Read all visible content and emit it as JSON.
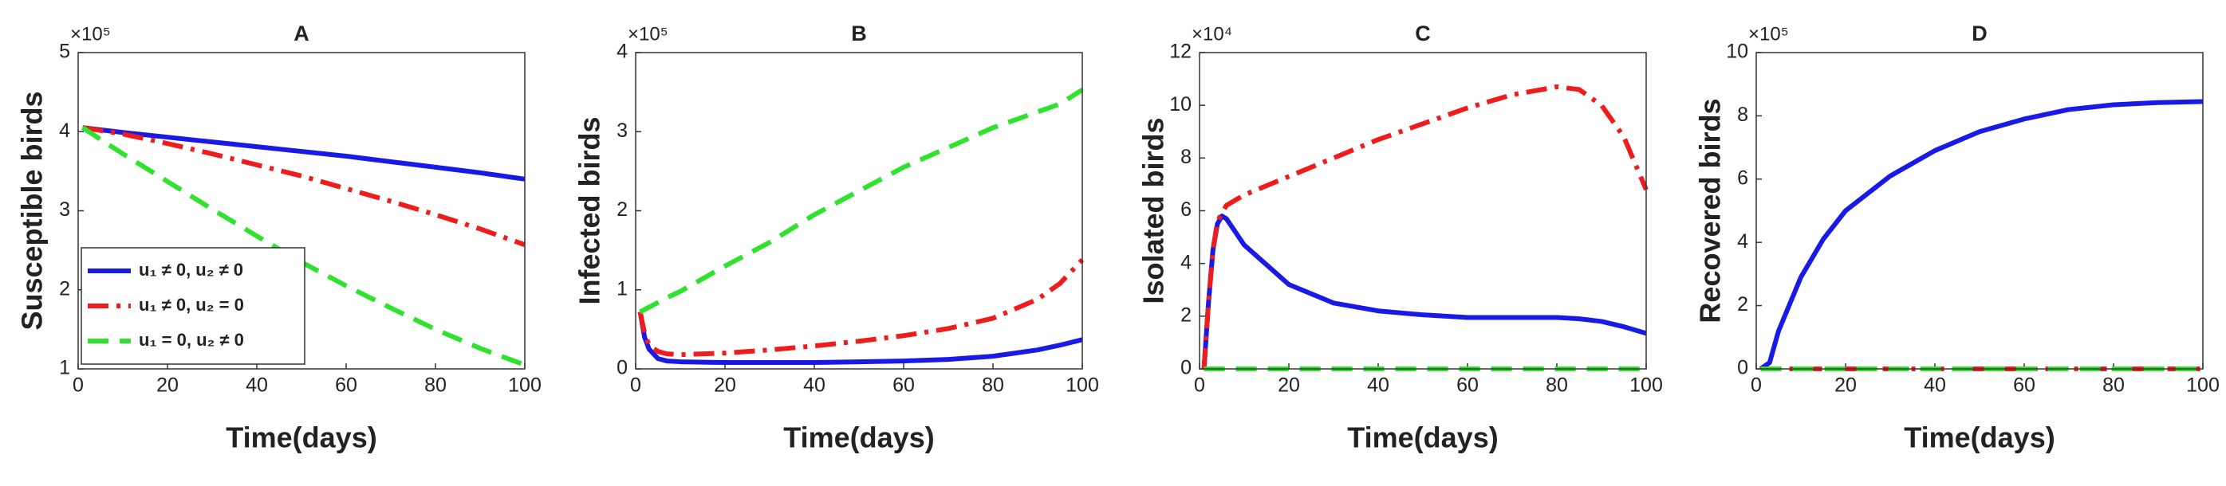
{
  "chart_data": [
    {
      "type": "line",
      "title": "A",
      "xlabel": "Time(days)",
      "ylabel": "Susceptible birds",
      "y_multiplier": "×10⁵",
      "x": [
        1,
        10,
        20,
        30,
        40,
        50,
        60,
        70,
        80,
        90,
        100
      ],
      "series": [
        {
          "name": "u₁ ≠ 0, u₂ ≠ 0",
          "color": "#1a1ae6",
          "dash": "solid",
          "values": [
            4.05,
            3.99,
            3.93,
            3.87,
            3.81,
            3.75,
            3.69,
            3.62,
            3.55,
            3.48,
            3.4
          ]
        },
        {
          "name": "u₁ ≠ 0, u₂ = 0",
          "color": "#ee1c1c",
          "dash": "dashdot",
          "values": [
            4.05,
            3.97,
            3.85,
            3.72,
            3.58,
            3.44,
            3.28,
            3.12,
            2.95,
            2.77,
            2.57
          ]
        },
        {
          "name": "u₁ = 0, u₂ ≠ 0",
          "color": "#2ee22e",
          "dash": "dashed",
          "values": [
            4.05,
            3.72,
            3.37,
            3.02,
            2.68,
            2.35,
            2.05,
            1.77,
            1.5,
            1.26,
            1.05
          ]
        }
      ],
      "xlim": [
        0,
        100
      ],
      "ylim": [
        1,
        5
      ],
      "xticks": [
        0,
        20,
        40,
        60,
        80,
        100
      ],
      "yticks": [
        1,
        2,
        3,
        4,
        5
      ],
      "legend": "lower left"
    },
    {
      "type": "line",
      "title": "B",
      "xlabel": "Time(days)",
      "ylabel": "Infected birds",
      "y_multiplier": "×10⁵",
      "x": [
        1,
        2,
        3,
        5,
        7,
        10,
        20,
        30,
        40,
        50,
        60,
        70,
        80,
        90,
        95,
        100
      ],
      "series": [
        {
          "color": "#1a1ae6",
          "dash": "solid",
          "values": [
            0.72,
            0.4,
            0.25,
            0.13,
            0.1,
            0.09,
            0.08,
            0.08,
            0.08,
            0.09,
            0.1,
            0.12,
            0.16,
            0.24,
            0.3,
            0.37
          ]
        },
        {
          "color": "#ee1c1c",
          "dash": "dashdot",
          "values": [
            0.72,
            0.45,
            0.3,
            0.22,
            0.19,
            0.18,
            0.2,
            0.24,
            0.29,
            0.35,
            0.42,
            0.51,
            0.64,
            0.88,
            1.08,
            1.38
          ]
        },
        {
          "color": "#2ee22e",
          "dash": "dashed",
          "values": [
            0.72,
            0.75,
            0.78,
            0.84,
            0.9,
            0.98,
            1.3,
            1.6,
            1.95,
            2.25,
            2.55,
            2.8,
            3.05,
            3.25,
            3.35,
            3.53
          ]
        }
      ],
      "xlim": [
        0,
        100
      ],
      "ylim": [
        0,
        4
      ],
      "xticks": [
        0,
        20,
        40,
        60,
        80,
        100
      ],
      "yticks": [
        0,
        1,
        2,
        3,
        4
      ]
    },
    {
      "type": "line",
      "title": "C",
      "xlabel": "Time(days)",
      "ylabel": "Isolated birds",
      "y_multiplier": "×10⁴",
      "x": [
        1,
        2,
        3,
        4,
        5,
        6,
        8,
        10,
        20,
        30,
        40,
        50,
        60,
        70,
        80,
        85,
        90,
        95,
        100
      ],
      "series": [
        {
          "color": "#1a1ae6",
          "dash": "solid",
          "values": [
            0,
            2.5,
            4.5,
            5.5,
            5.8,
            5.7,
            5.2,
            4.7,
            3.2,
            2.5,
            2.2,
            2.05,
            1.95,
            1.95,
            1.95,
            1.9,
            1.8,
            1.6,
            1.35
          ]
        },
        {
          "color": "#ee1c1c",
          "dash": "dashdot",
          "values": [
            0,
            2.5,
            4.5,
            5.6,
            5.9,
            6.2,
            6.4,
            6.6,
            7.3,
            8.0,
            8.7,
            9.3,
            9.9,
            10.4,
            10.7,
            10.6,
            10.0,
            8.8,
            6.8
          ]
        },
        {
          "color": "#2ee22e",
          "dash": "dashed",
          "values": [
            0,
            0,
            0,
            0,
            0,
            0,
            0,
            0,
            0,
            0,
            0,
            0,
            0,
            0,
            0,
            0,
            0,
            0,
            0
          ]
        }
      ],
      "xlim": [
        0,
        100
      ],
      "ylim": [
        0,
        12
      ],
      "xticks": [
        0,
        20,
        40,
        60,
        80,
        100
      ],
      "yticks": [
        0,
        2,
        4,
        6,
        8,
        10,
        12
      ]
    },
    {
      "type": "line",
      "title": "D",
      "xlabel": "Time(days)",
      "ylabel": "Recovered birds",
      "y_multiplier": "×10⁵",
      "x": [
        1,
        3,
        5,
        10,
        15,
        20,
        30,
        40,
        50,
        60,
        70,
        80,
        90,
        100
      ],
      "series": [
        {
          "color": "#1a1ae6",
          "dash": "solid",
          "values": [
            0,
            0.2,
            1.2,
            2.9,
            4.1,
            5.0,
            6.1,
            6.9,
            7.5,
            7.9,
            8.2,
            8.35,
            8.42,
            8.45
          ]
        },
        {
          "color": "#ee1c1c",
          "dash": "dashdot",
          "values": [
            0,
            0,
            0,
            0,
            0,
            0,
            0,
            0,
            0,
            0,
            0,
            0,
            0,
            0
          ]
        },
        {
          "color": "#2ee22e",
          "dash": "dashed",
          "values": [
            0,
            0,
            0,
            0,
            0,
            0,
            0,
            0,
            0,
            0,
            0,
            0,
            0,
            0
          ]
        }
      ],
      "xlim": [
        0,
        100
      ],
      "ylim": [
        0,
        10
      ],
      "xticks": [
        0,
        20,
        40,
        60,
        80,
        100
      ],
      "yticks": [
        0,
        2,
        4,
        6,
        8,
        10
      ]
    }
  ]
}
